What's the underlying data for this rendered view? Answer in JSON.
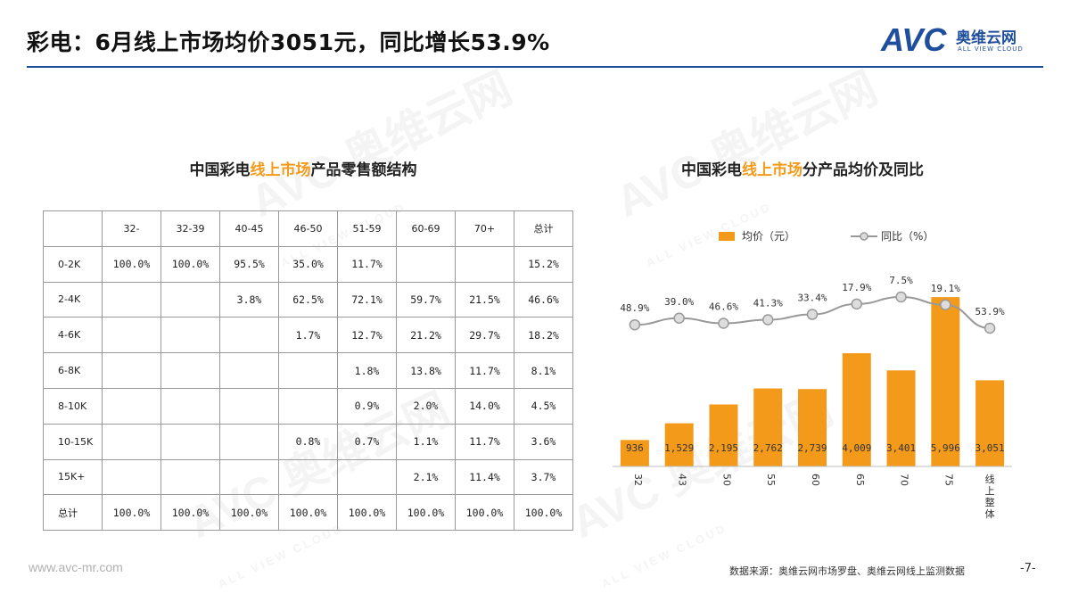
{
  "header": {
    "title": "彩电：6月线上市场均价3051元，同比增长53.9%"
  },
  "logo": {
    "mark": "AVC",
    "cn": "奥维云网",
    "en": "ALL VIEW CLOUD"
  },
  "watermark": {
    "mark": "AVC",
    "cn": "奥维云网",
    "en": "ALL VIEW CLOUD"
  },
  "left_section": {
    "title_pre": "中国彩电",
    "title_hl": "线上市场",
    "title_post": "产品零售额结构"
  },
  "right_section": {
    "title_pre": "中国彩电",
    "title_hl": "线上市场",
    "title_post": "分产品均价及同比"
  },
  "table": {
    "columns": [
      "",
      "32-",
      "32-39",
      "40-45",
      "46-50",
      "51-59",
      "60-69",
      "70+",
      "总计"
    ],
    "rows": [
      [
        "0-2K",
        "100.0%",
        "100.0%",
        "95.5%",
        "35.0%",
        "11.7%",
        "",
        "",
        "15.2%"
      ],
      [
        "2-4K",
        "",
        "",
        "3.8%",
        "62.5%",
        "72.1%",
        "59.7%",
        "21.5%",
        "46.6%"
      ],
      [
        "4-6K",
        "",
        "",
        "",
        "1.7%",
        "12.7%",
        "21.2%",
        "29.7%",
        "18.2%"
      ],
      [
        "6-8K",
        "",
        "",
        "",
        "",
        "1.8%",
        "13.8%",
        "11.7%",
        "8.1%"
      ],
      [
        "8-10K",
        "",
        "",
        "",
        "",
        "0.9%",
        "2.0%",
        "14.0%",
        "4.5%"
      ],
      [
        "10-15K",
        "",
        "",
        "",
        "0.8%",
        "0.7%",
        "1.1%",
        "11.7%",
        "3.6%"
      ],
      [
        "15K+",
        "",
        "",
        "",
        "",
        "",
        "2.1%",
        "11.4%",
        "3.7%"
      ],
      [
        "总计",
        "100.0%",
        "100.0%",
        "100.0%",
        "100.0%",
        "100.0%",
        "100.0%",
        "100.0%",
        "100.0%"
      ]
    ]
  },
  "chart_data": {
    "type": "bar",
    "title": "中国彩电线上市场分产品均价及同比",
    "categories": [
      "32",
      "43",
      "50",
      "55",
      "60",
      "65",
      "70",
      "75",
      "线上整体"
    ],
    "series": [
      {
        "name": "均价（元）",
        "type": "bar",
        "values": [
          936,
          1529,
          2195,
          2762,
          2739,
          4009,
          3401,
          5996,
          3051
        ],
        "labels": [
          "936",
          "1,529",
          "2,195",
          "2,762",
          "2,739",
          "4,009",
          "3,401",
          "5,996",
          "3,051"
        ]
      },
      {
        "name": "同比（%）",
        "type": "line",
        "values": [
          48.9,
          39.0,
          46.6,
          41.3,
          33.4,
          17.9,
          7.5,
          19.1,
          53.9
        ],
        "labels": [
          "48.9%",
          "39.0%",
          "46.6%",
          "41.3%",
          "33.4%",
          "17.9%",
          "7.5%",
          "19.1%",
          "53.9%"
        ]
      }
    ],
    "legend_position": "top",
    "grid": false,
    "colors": {
      "bar": "#f39a1b",
      "line": "#999999",
      "marker_fill": "#dddddd"
    }
  },
  "footer": {
    "url": "www.avc-mr.com",
    "source": "数据来源：奥维云网市场罗盘、奥维云网线上监测数据",
    "page": "-7-"
  }
}
